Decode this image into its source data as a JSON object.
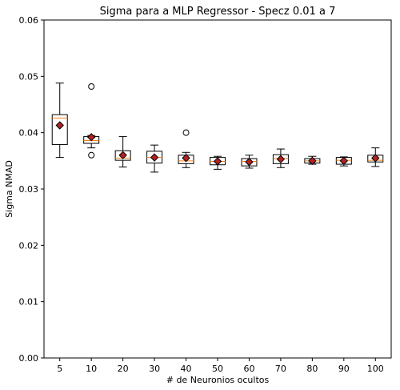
{
  "chart_data": {
    "type": "boxplot",
    "title": "Sigma para a MLP Regressor - Specz 0.01 a 7",
    "xlabel": "# de Neuronios ocultos",
    "ylabel": "Sigma NMAD",
    "ylim": [
      0.0,
      0.06
    ],
    "yticks": [
      0.0,
      0.01,
      0.02,
      0.03,
      0.04,
      0.05,
      0.06
    ],
    "ytick_labels": [
      "0.00",
      "0.01",
      "0.02",
      "0.03",
      "0.04",
      "0.05",
      "0.06"
    ],
    "grid": false,
    "categories": [
      "5",
      "10",
      "20",
      "30",
      "40",
      "50",
      "60",
      "70",
      "80",
      "90",
      "100"
    ],
    "boxes": [
      {
        "label": "5",
        "whislo": 0.0356,
        "q1": 0.0379,
        "med": 0.0426,
        "q3": 0.0432,
        "whishi": 0.0488,
        "mean": 0.0413,
        "fliers": []
      },
      {
        "label": "10",
        "whislo": 0.0373,
        "q1": 0.0381,
        "med": 0.0386,
        "q3": 0.0393,
        "whishi": 0.0395,
        "mean": 0.0392,
        "fliers": [
          0.0482,
          0.036
        ]
      },
      {
        "label": "20",
        "whislo": 0.0339,
        "q1": 0.0351,
        "med": 0.0355,
        "q3": 0.0368,
        "whishi": 0.0393,
        "mean": 0.036,
        "fliers": []
      },
      {
        "label": "30",
        "whislo": 0.033,
        "q1": 0.0346,
        "med": 0.0356,
        "q3": 0.0367,
        "whishi": 0.0378,
        "mean": 0.0356,
        "fliers": []
      },
      {
        "label": "40",
        "whislo": 0.0338,
        "q1": 0.0345,
        "med": 0.035,
        "q3": 0.036,
        "whishi": 0.0365,
        "mean": 0.0355,
        "fliers": [
          0.04
        ]
      },
      {
        "label": "50",
        "whislo": 0.0335,
        "q1": 0.0343,
        "med": 0.0349,
        "q3": 0.0356,
        "whishi": 0.0358,
        "mean": 0.0349,
        "fliers": []
      },
      {
        "label": "60",
        "whislo": 0.0337,
        "q1": 0.0341,
        "med": 0.0349,
        "q3": 0.0354,
        "whishi": 0.036,
        "mean": 0.0348,
        "fliers": []
      },
      {
        "label": "70",
        "whislo": 0.0338,
        "q1": 0.0345,
        "med": 0.0354,
        "q3": 0.0361,
        "whishi": 0.0371,
        "mean": 0.0353,
        "fliers": []
      },
      {
        "label": "80",
        "whislo": 0.0344,
        "q1": 0.0346,
        "med": 0.035,
        "q3": 0.0354,
        "whishi": 0.0358,
        "mean": 0.035,
        "fliers": []
      },
      {
        "label": "90",
        "whislo": 0.0341,
        "q1": 0.0344,
        "med": 0.0351,
        "q3": 0.0356,
        "whishi": 0.0357,
        "mean": 0.035,
        "fliers": []
      },
      {
        "label": "100",
        "whislo": 0.034,
        "q1": 0.0348,
        "med": 0.0351,
        "q3": 0.036,
        "whishi": 0.0373,
        "mean": 0.0355,
        "fliers": []
      }
    ],
    "colors": {
      "box_edge": "#000000",
      "median": "#ff7f0e",
      "mean_fill": "#b22222",
      "mean_edge": "#000000",
      "flier_edge": "#000000"
    }
  }
}
